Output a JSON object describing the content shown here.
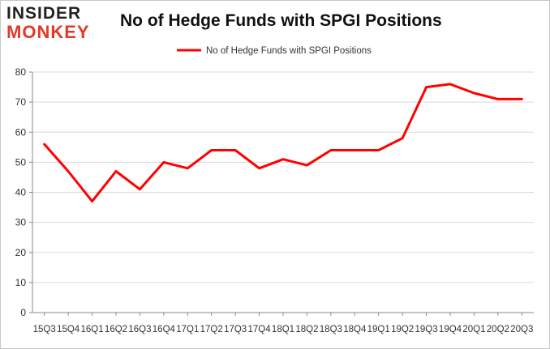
{
  "brand": {
    "line1": "INSIDER",
    "line2": "MONKEY",
    "color_dark": "#222222",
    "color_accent": "#e03a2a"
  },
  "chart_data": {
    "type": "line",
    "title": "No of Hedge Funds with SPGI Positions",
    "xlabel": "",
    "ylabel": "",
    "ylim": [
      0,
      80
    ],
    "yticks": [
      0,
      10,
      20,
      30,
      40,
      50,
      60,
      70,
      80
    ],
    "grid": true,
    "legend": "top-center",
    "categories": [
      "15Q3",
      "15Q4",
      "16Q1",
      "16Q2",
      "16Q3",
      "16Q4",
      "17Q1",
      "17Q2",
      "17Q3",
      "17Q4",
      "18Q1",
      "18Q2",
      "18Q3",
      "18Q4",
      "19Q1",
      "19Q2",
      "19Q3",
      "19Q4",
      "20Q1",
      "20Q2",
      "20Q3"
    ],
    "series": [
      {
        "name": "No of Hedge Funds with SPGI Positions",
        "color": "#ff0000",
        "values": [
          56,
          47,
          37,
          47,
          41,
          50,
          48,
          54,
          54,
          48,
          51,
          49,
          54,
          54,
          54,
          58,
          75,
          76,
          73,
          71,
          71
        ]
      }
    ]
  }
}
